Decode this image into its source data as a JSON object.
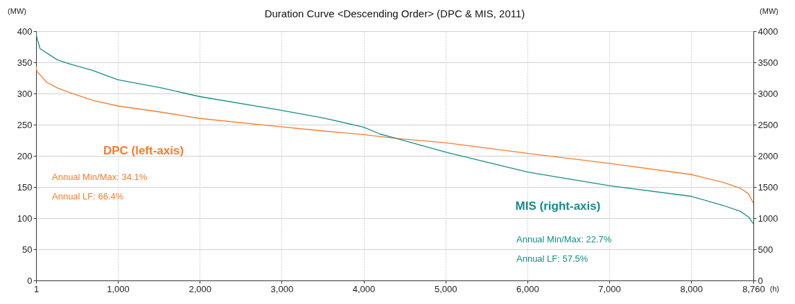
{
  "chart_data": {
    "type": "line",
    "title": "Duration Curve <Descending Order> (DPC & MIS, 2011)",
    "xlabel": "(h)",
    "ylabel": "(MW)",
    "y2label": "(MW)",
    "xlim": [
      1,
      8760
    ],
    "xticks": [
      1,
      {
        "value": 1000,
        "label": "1,000"
      },
      {
        "value": 2000,
        "label": "2,000"
      },
      {
        "value": 3000,
        "label": "3,000"
      },
      {
        "value": 4000,
        "label": "4,000"
      },
      {
        "value": 5000,
        "label": "5,000"
      },
      {
        "value": 6000,
        "label": "6,000"
      },
      {
        "value": 7000,
        "label": "7,000"
      },
      {
        "value": 8000,
        "label": "8,000"
      },
      {
        "value": 8760,
        "label": "8,760"
      }
    ],
    "ylim": [
      0,
      400
    ],
    "yticks": [
      0,
      50,
      100,
      150,
      200,
      250,
      300,
      350,
      400
    ],
    "y2lim": [
      0,
      4000
    ],
    "y2ticks": [
      0,
      500,
      1000,
      1500,
      2000,
      2500,
      3000,
      3500,
      4000
    ],
    "grid": true,
    "series": [
      {
        "name": "DPC (left-axis)",
        "color": "#f97b28",
        "x": [
          1,
          10,
          130,
          260,
          400,
          690,
          1000,
          1530,
          2000,
          2950,
          3500,
          4000,
          4400,
          5000,
          6000,
          7000,
          8000,
          8400,
          8600,
          8700,
          8760
        ],
        "values": [
          343,
          336,
          318,
          309,
          302,
          289,
          280,
          270,
          260,
          247,
          240,
          234,
          228,
          221,
          204,
          188,
          170,
          157,
          148,
          139,
          124
        ]
      },
      {
        "name": "MIS (right-axis)",
        "color": "#138d8a",
        "axis": "y2",
        "x": [
          1,
          10,
          50,
          260,
          400,
          690,
          1000,
          1530,
          2000,
          2950,
          3500,
          4000,
          4200,
          4400,
          5000,
          6000,
          7000,
          8000,
          8400,
          8600,
          8700,
          8760
        ],
        "values": [
          3980,
          3900,
          3720,
          3540,
          3480,
          3370,
          3220,
          3090,
          2950,
          2740,
          2610,
          2460,
          2350,
          2280,
          2060,
          1740,
          1520,
          1350,
          1200,
          1110,
          1020,
          910
        ]
      }
    ],
    "annotations": [
      "Annual Min/Max: 34.1%",
      "Annual LF: 66.4%",
      "Annual Min/Max: 22.7%",
      "Annual LF: 57.5%"
    ]
  }
}
